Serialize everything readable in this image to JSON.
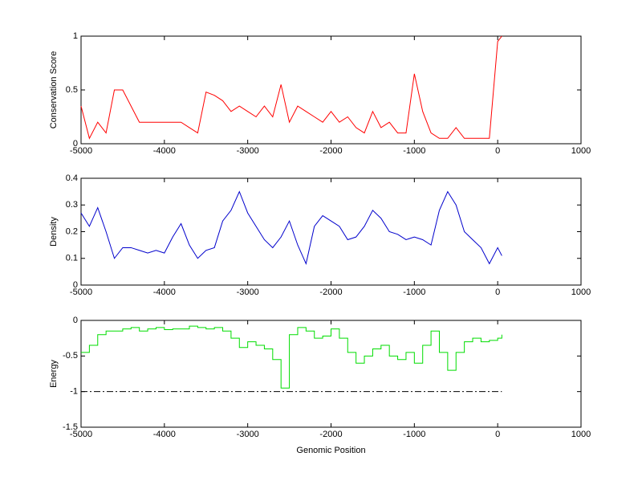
{
  "chart_data": [
    {
      "type": "line",
      "ylabel": "Conservation Score",
      "x": [
        -5000,
        -4900,
        -4800,
        -4700,
        -4600,
        -4500,
        -4400,
        -4300,
        -4200,
        -4100,
        -4000,
        -3900,
        -3800,
        -3700,
        -3600,
        -3500,
        -3400,
        -3300,
        -3200,
        -3100,
        -3000,
        -2900,
        -2800,
        -2700,
        -2600,
        -2500,
        -2400,
        -2300,
        -2200,
        -2100,
        -2000,
        -1900,
        -1800,
        -1700,
        -1600,
        -1500,
        -1400,
        -1300,
        -1200,
        -1100,
        -1000,
        -900,
        -800,
        -700,
        -600,
        -500,
        -400,
        -300,
        -200,
        -100,
        0,
        50
      ],
      "series": [
        {
          "color": "#ff0000",
          "values": [
            0.35,
            0.05,
            0.2,
            0.1,
            0.5,
            0.5,
            0.35,
            0.2,
            0.2,
            0.2,
            0.2,
            0.2,
            0.2,
            0.15,
            0.1,
            0.48,
            0.45,
            0.4,
            0.3,
            0.35,
            0.3,
            0.25,
            0.35,
            0.25,
            0.55,
            0.2,
            0.35,
            0.3,
            0.25,
            0.2,
            0.3,
            0.2,
            0.25,
            0.15,
            0.1,
            0.3,
            0.15,
            0.2,
            0.1,
            0.1,
            0.65,
            0.3,
            0.1,
            0.05,
            0.05,
            0.15,
            0.05,
            0.05,
            0.05,
            0.05,
            0.95,
            1
          ]
        }
      ],
      "xlim": [
        -5000,
        1000
      ],
      "xticks": [
        -5000,
        -4000,
        -3000,
        -2000,
        -1000,
        0,
        1000
      ],
      "ylim": [
        0,
        1
      ],
      "yticks": [
        0,
        0.5,
        1
      ]
    },
    {
      "type": "line",
      "ylabel": "Density",
      "x": [
        -5000,
        -4900,
        -4800,
        -4700,
        -4600,
        -4500,
        -4400,
        -4300,
        -4200,
        -4100,
        -4000,
        -3900,
        -3800,
        -3700,
        -3600,
        -3500,
        -3400,
        -3300,
        -3200,
        -3100,
        -3000,
        -2900,
        -2800,
        -2700,
        -2600,
        -2500,
        -2400,
        -2300,
        -2200,
        -2100,
        -2000,
        -1900,
        -1800,
        -1700,
        -1600,
        -1500,
        -1400,
        -1300,
        -1200,
        -1100,
        -1000,
        -900,
        -800,
        -700,
        -600,
        -500,
        -400,
        -300,
        -200,
        -100,
        0,
        50
      ],
      "series": [
        {
          "color": "#0000cc",
          "values": [
            0.27,
            0.22,
            0.29,
            0.2,
            0.1,
            0.14,
            0.14,
            0.13,
            0.12,
            0.13,
            0.12,
            0.18,
            0.23,
            0.15,
            0.1,
            0.13,
            0.14,
            0.24,
            0.28,
            0.35,
            0.27,
            0.22,
            0.17,
            0.14,
            0.18,
            0.24,
            0.15,
            0.08,
            0.22,
            0.26,
            0.24,
            0.22,
            0.17,
            0.18,
            0.22,
            0.28,
            0.25,
            0.2,
            0.19,
            0.17,
            0.18,
            0.17,
            0.15,
            0.28,
            0.35,
            0.3,
            0.2,
            0.17,
            0.14,
            0.08,
            0.14,
            0.11
          ]
        }
      ],
      "xlim": [
        -5000,
        1000
      ],
      "xticks": [
        -5000,
        -4000,
        -3000,
        -2000,
        -1000,
        0,
        1000
      ],
      "ylim": [
        0,
        0.4
      ],
      "yticks": [
        0,
        0.1,
        0.2,
        0.3,
        0.4
      ]
    },
    {
      "type": "line",
      "ylabel": "Energy",
      "xlabel": "Genomic Position",
      "step": true,
      "x": [
        -5000,
        -4900,
        -4800,
        -4700,
        -4600,
        -4500,
        -4400,
        -4300,
        -4200,
        -4100,
        -4000,
        -3900,
        -3800,
        -3700,
        -3600,
        -3500,
        -3400,
        -3300,
        -3200,
        -3100,
        -3000,
        -2900,
        -2800,
        -2700,
        -2600,
        -2500,
        -2400,
        -2300,
        -2200,
        -2100,
        -2000,
        -1900,
        -1800,
        -1700,
        -1600,
        -1500,
        -1400,
        -1300,
        -1200,
        -1100,
        -1000,
        -900,
        -800,
        -700,
        -600,
        -500,
        -400,
        -300,
        -200,
        -100,
        0,
        50
      ],
      "series": [
        {
          "color": "#00dd00",
          "values": [
            -0.45,
            -0.35,
            -0.2,
            -0.15,
            -0.15,
            -0.12,
            -0.1,
            -0.15,
            -0.12,
            -0.1,
            -0.13,
            -0.12,
            -0.12,
            -0.08,
            -0.1,
            -0.12,
            -0.1,
            -0.15,
            -0.25,
            -0.38,
            -0.3,
            -0.35,
            -0.4,
            -0.55,
            -0.95,
            -0.2,
            -0.1,
            -0.15,
            -0.25,
            -0.22,
            -0.12,
            -0.25,
            -0.45,
            -0.6,
            -0.5,
            -0.4,
            -0.35,
            -0.5,
            -0.55,
            -0.45,
            -0.6,
            -0.35,
            -0.15,
            -0.45,
            -0.7,
            -0.45,
            -0.3,
            -0.25,
            -0.3,
            -0.28,
            -0.25,
            -0.2
          ]
        }
      ],
      "hline": {
        "value": -1,
        "from": -5000,
        "to": 50,
        "color": "#000000",
        "dash": "dashdot"
      },
      "xlim": [
        -5000,
        1000
      ],
      "xticks": [
        -5000,
        -4000,
        -3000,
        -2000,
        -1000,
        0,
        1000
      ],
      "ylim": [
        -1.5,
        0
      ],
      "yticks": [
        -1.5,
        -1,
        -0.5,
        0
      ]
    }
  ]
}
